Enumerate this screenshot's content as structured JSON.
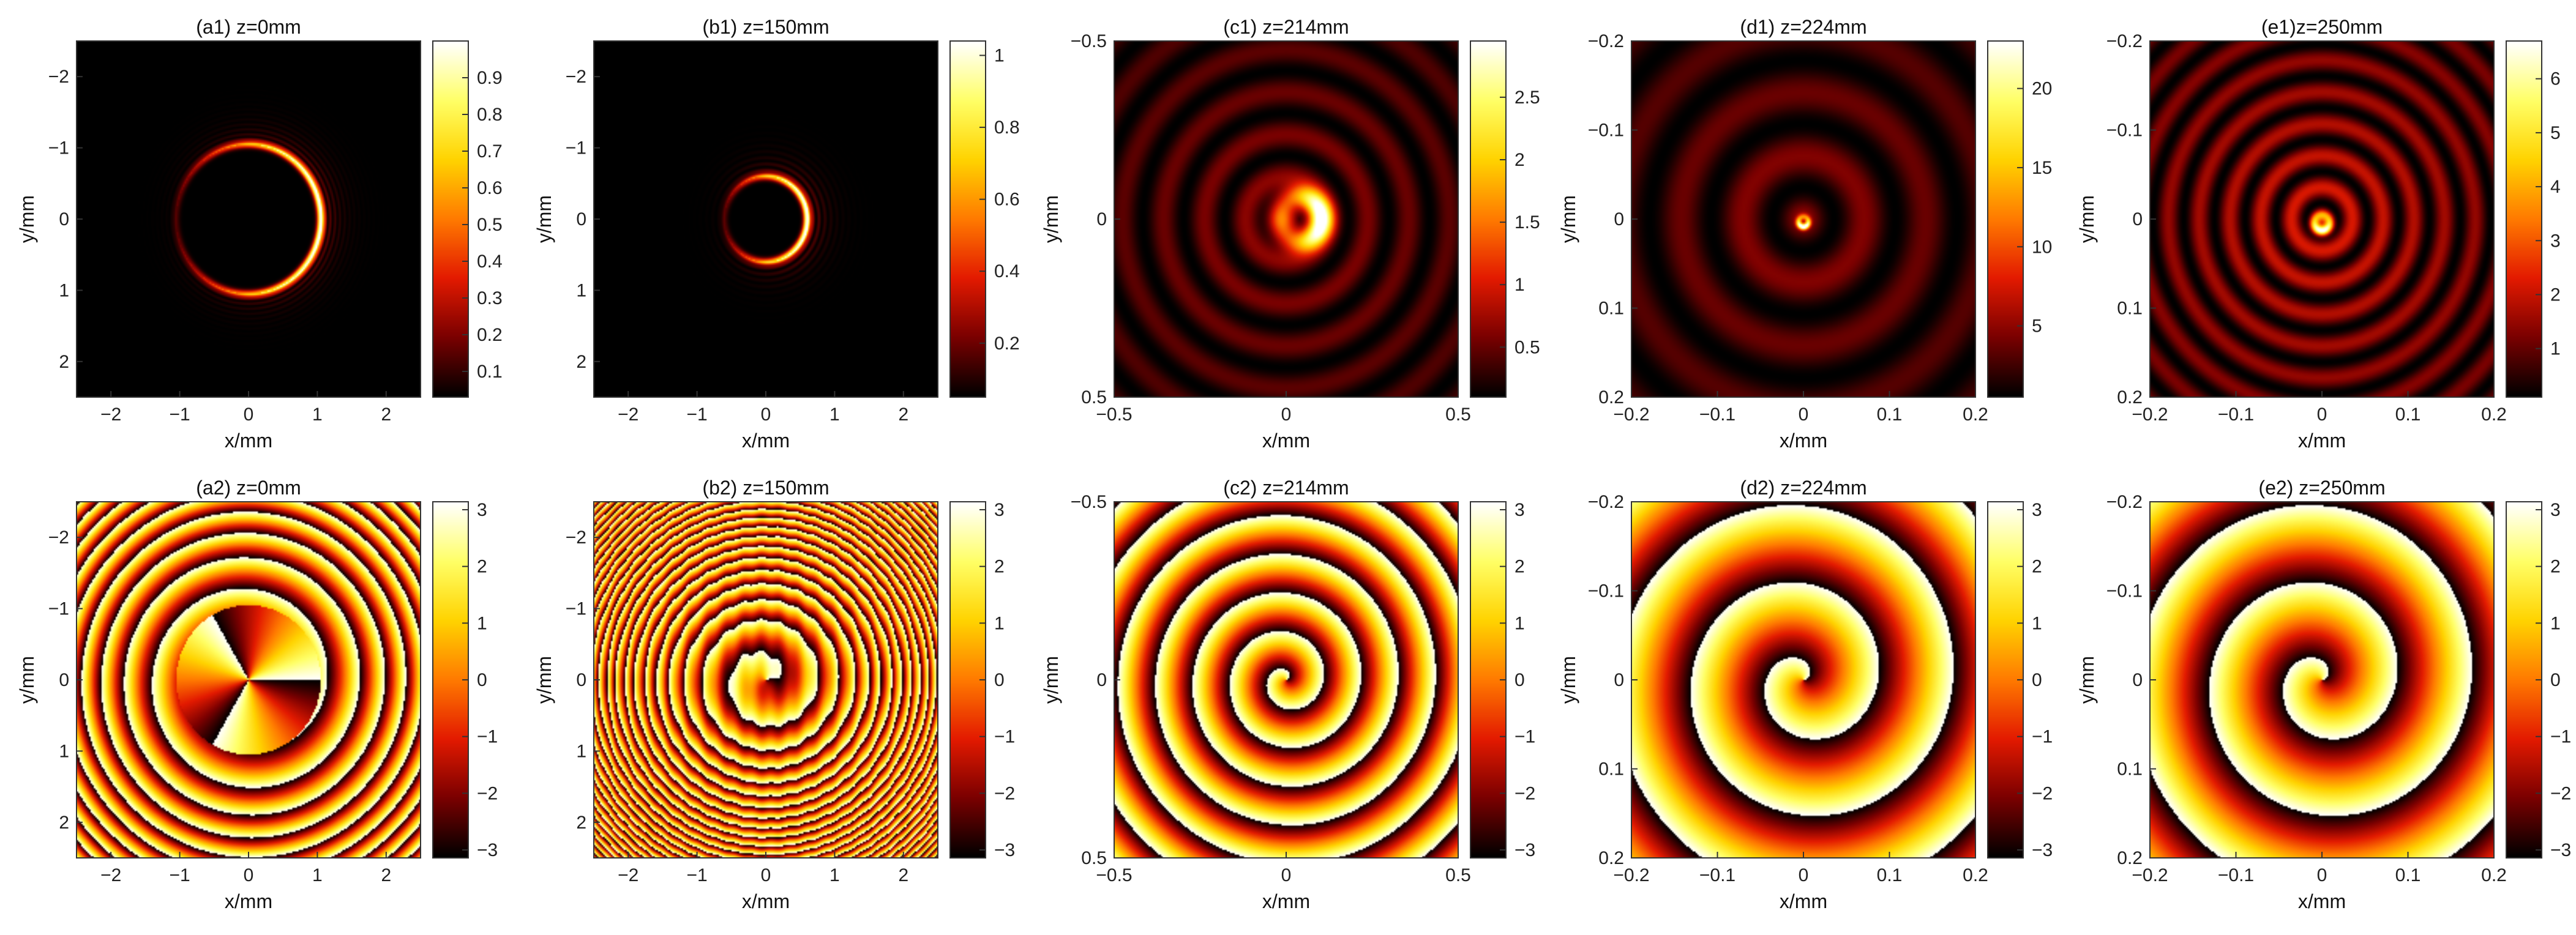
{
  "figure": {
    "colormap": "hot",
    "colormap_stops": [
      "#000000",
      "#7a0000",
      "#e31a00",
      "#ff7a00",
      "#ffd300",
      "#ffff66",
      "#ffffff"
    ]
  },
  "chart_data": [
    {
      "id": "a1",
      "type": "heatmap",
      "quantity": "intensity",
      "title": "(a1) z=0mm",
      "xlabel": "x/mm",
      "ylabel": "y/mm",
      "xlim": [
        -2.5,
        2.5
      ],
      "ylim": [
        -2.5,
        2.5
      ],
      "y_reversed": true,
      "xticks": [
        {
          "v": -2,
          "t": "−2"
        },
        {
          "v": -1,
          "t": "−1"
        },
        {
          "v": 0,
          "t": "0"
        },
        {
          "v": 1,
          "t": "1"
        },
        {
          "v": 2,
          "t": "2"
        }
      ],
      "yticks": [
        {
          "v": -2,
          "t": "−2"
        },
        {
          "v": -1,
          "t": "−1"
        },
        {
          "v": 0,
          "t": "0"
        },
        {
          "v": 1,
          "t": "1"
        },
        {
          "v": 2,
          "t": "2"
        }
      ],
      "colorbar": {
        "min": 0.03,
        "max": 1.0,
        "ticks": [
          {
            "v": 0.1,
            "t": "0.1"
          },
          {
            "v": 0.2,
            "t": "0.2"
          },
          {
            "v": 0.3,
            "t": "0.3"
          },
          {
            "v": 0.4,
            "t": "0.4"
          },
          {
            "v": 0.5,
            "t": "0.5"
          },
          {
            "v": 0.6,
            "t": "0.6"
          },
          {
            "v": 0.7,
            "t": "0.7"
          },
          {
            "v": 0.8,
            "t": "0.8"
          },
          {
            "v": 0.9,
            "t": "0.9"
          }
        ]
      },
      "pattern": {
        "kind": "ring",
        "cx": 0.0,
        "cy": 0.0,
        "radius": 1.05,
        "width": 0.05,
        "bright_side": "right",
        "fringes": 5
      }
    },
    {
      "id": "b1",
      "type": "heatmap",
      "quantity": "intensity",
      "title": "(b1) z=150mm",
      "xlabel": "x/mm",
      "ylabel": "y/mm",
      "xlim": [
        -2.5,
        2.5
      ],
      "ylim": [
        -2.5,
        2.5
      ],
      "y_reversed": true,
      "xticks": [
        {
          "v": -2,
          "t": "−2"
        },
        {
          "v": -1,
          "t": "−1"
        },
        {
          "v": 0,
          "t": "0"
        },
        {
          "v": 1,
          "t": "1"
        },
        {
          "v": 2,
          "t": "2"
        }
      ],
      "yticks": [
        {
          "v": -2,
          "t": "−2"
        },
        {
          "v": -1,
          "t": "−1"
        },
        {
          "v": 0,
          "t": "0"
        },
        {
          "v": 1,
          "t": "1"
        },
        {
          "v": 2,
          "t": "2"
        }
      ],
      "colorbar": {
        "min": 0.05,
        "max": 1.04,
        "ticks": [
          {
            "v": 0.2,
            "t": "0.2"
          },
          {
            "v": 0.4,
            "t": "0.4"
          },
          {
            "v": 0.6,
            "t": "0.6"
          },
          {
            "v": 0.8,
            "t": "0.8"
          },
          {
            "v": 1.0,
            "t": "1"
          }
        ]
      },
      "pattern": {
        "kind": "ring",
        "cx": 0.0,
        "cy": 0.0,
        "radius": 0.6,
        "width": 0.05,
        "bright_side": "right",
        "fringes": 4
      }
    },
    {
      "id": "c1",
      "type": "heatmap",
      "quantity": "intensity",
      "title": "(c1) z=214mm",
      "xlabel": "x/mm",
      "ylabel": "y/mm",
      "xlim": [
        -0.5,
        0.5
      ],
      "ylim": [
        -0.5,
        0.5
      ],
      "y_reversed": true,
      "xticks": [
        {
          "v": -0.5,
          "t": "−0.5"
        },
        {
          "v": 0,
          "t": "0"
        },
        {
          "v": 0.5,
          "t": "0.5"
        }
      ],
      "yticks": [
        {
          "v": -0.5,
          "t": "−0.5"
        },
        {
          "v": 0,
          "t": "0"
        },
        {
          "v": 0.5,
          "t": "0.5"
        }
      ],
      "colorbar": {
        "min": 0.1,
        "max": 2.95,
        "ticks": [
          {
            "v": 0.5,
            "t": "0.5"
          },
          {
            "v": 1.0,
            "t": "1"
          },
          {
            "v": 1.5,
            "t": "1.5"
          },
          {
            "v": 2.0,
            "t": "2"
          },
          {
            "v": 2.5,
            "t": "2.5"
          }
        ]
      },
      "pattern": {
        "kind": "crescent",
        "cx": 0.08,
        "cy": 0.0,
        "radius": 0.12,
        "bright_side": "right",
        "halo_rings": 3
      }
    },
    {
      "id": "d1",
      "type": "heatmap",
      "quantity": "intensity",
      "title": "(d1) z=224mm",
      "xlabel": "x/mm",
      "ylabel": "y/mm",
      "xlim": [
        -0.2,
        0.2
      ],
      "ylim": [
        -0.2,
        0.2
      ],
      "y_reversed": true,
      "xticks": [
        {
          "v": -0.2,
          "t": "−0.2"
        },
        {
          "v": -0.1,
          "t": "−0.1"
        },
        {
          "v": 0,
          "t": "0"
        },
        {
          "v": 0.1,
          "t": "0.1"
        },
        {
          "v": 0.2,
          "t": "0.2"
        }
      ],
      "yticks": [
        {
          "v": -0.2,
          "t": "−0.2"
        },
        {
          "v": -0.1,
          "t": "−0.1"
        },
        {
          "v": 0,
          "t": "0"
        },
        {
          "v": 0.1,
          "t": "0.1"
        },
        {
          "v": 0.2,
          "t": "0.2"
        }
      ],
      "colorbar": {
        "min": 0.5,
        "max": 23.0,
        "ticks": [
          {
            "v": 5,
            "t": "5"
          },
          {
            "v": 10,
            "t": "10"
          },
          {
            "v": 15,
            "t": "15"
          },
          {
            "v": 20,
            "t": "20"
          }
        ]
      },
      "pattern": {
        "kind": "crescent",
        "cx": 0.0,
        "cy": 0.015,
        "radius": 0.028,
        "bright_side": "bottom",
        "halo_rings": 2
      }
    },
    {
      "id": "e1",
      "type": "heatmap",
      "quantity": "intensity",
      "title": "(e1)z=250mm",
      "xlabel": "x/mm",
      "ylabel": "y/mm",
      "xlim": [
        -0.2,
        0.2
      ],
      "ylim": [
        -0.2,
        0.2
      ],
      "y_reversed": true,
      "xticks": [
        {
          "v": -0.2,
          "t": "−0.2"
        },
        {
          "v": -0.1,
          "t": "−0.1"
        },
        {
          "v": 0,
          "t": "0"
        },
        {
          "v": 0.1,
          "t": "0.1"
        },
        {
          "v": 0.2,
          "t": "0.2"
        }
      ],
      "yticks": [
        {
          "v": -0.2,
          "t": "−0.2"
        },
        {
          "v": -0.1,
          "t": "−0.1"
        },
        {
          "v": 0,
          "t": "0"
        },
        {
          "v": 0.1,
          "t": "0.1"
        },
        {
          "v": 0.2,
          "t": "0.2"
        }
      ],
      "colorbar": {
        "min": 0.1,
        "max": 6.7,
        "ticks": [
          {
            "v": 1,
            "t": "1"
          },
          {
            "v": 2,
            "t": "2"
          },
          {
            "v": 3,
            "t": "3"
          },
          {
            "v": 4,
            "t": "4"
          },
          {
            "v": 5,
            "t": "5"
          },
          {
            "v": 6,
            "t": "6"
          }
        ]
      },
      "pattern": {
        "kind": "crescent",
        "cx": 0.0,
        "cy": 0.02,
        "radius": 0.045,
        "bright_side": "bottom",
        "halo_rings": 4
      }
    },
    {
      "id": "a2",
      "type": "heatmap",
      "quantity": "phase",
      "title": "(a2) z=0mm",
      "xlabel": "x/mm",
      "ylabel": "y/mm",
      "xlim": [
        -2.5,
        2.5
      ],
      "ylim": [
        -2.5,
        2.5
      ],
      "y_reversed": true,
      "xticks": [
        {
          "v": -2,
          "t": "−2"
        },
        {
          "v": -1,
          "t": "−1"
        },
        {
          "v": 0,
          "t": "0"
        },
        {
          "v": 1,
          "t": "1"
        },
        {
          "v": 2,
          "t": "2"
        }
      ],
      "yticks": [
        {
          "v": -2,
          "t": "−2"
        },
        {
          "v": -1,
          "t": "−1"
        },
        {
          "v": 0,
          "t": "0"
        },
        {
          "v": 1,
          "t": "1"
        },
        {
          "v": 2,
          "t": "2"
        }
      ],
      "colorbar": {
        "min": -3.14,
        "max": 3.14,
        "ticks": [
          {
            "v": -3,
            "t": "−3"
          },
          {
            "v": -2,
            "t": "−2"
          },
          {
            "v": -1,
            "t": "−1"
          },
          {
            "v": 0,
            "t": "0"
          },
          {
            "v": 1,
            "t": "1"
          },
          {
            "v": 2,
            "t": "2"
          },
          {
            "v": 3,
            "t": "3"
          }
        ]
      },
      "pattern": {
        "kind": "vortex-disk",
        "charge": 1,
        "disk_radius": 1.05,
        "ring_density": 10,
        "sectors": 3
      }
    },
    {
      "id": "b2",
      "type": "heatmap",
      "quantity": "phase",
      "title": "(b2) z=150mm",
      "xlabel": "x/mm",
      "ylabel": "y/mm",
      "xlim": [
        -2.5,
        2.5
      ],
      "ylim": [
        -2.5,
        2.5
      ],
      "y_reversed": true,
      "xticks": [
        {
          "v": -2,
          "t": "−2"
        },
        {
          "v": -1,
          "t": "−1"
        },
        {
          "v": 0,
          "t": "0"
        },
        {
          "v": 1,
          "t": "1"
        },
        {
          "v": 2,
          "t": "2"
        }
      ],
      "yticks": [
        {
          "v": -2,
          "t": "−2"
        },
        {
          "v": -1,
          "t": "−1"
        },
        {
          "v": 0,
          "t": "0"
        },
        {
          "v": 1,
          "t": "1"
        },
        {
          "v": 2,
          "t": "2"
        }
      ],
      "colorbar": {
        "min": -3.14,
        "max": 3.14,
        "ticks": [
          {
            "v": -3,
            "t": "−3"
          },
          {
            "v": -2,
            "t": "−2"
          },
          {
            "v": -1,
            "t": "−1"
          },
          {
            "v": 0,
            "t": "0"
          },
          {
            "v": 1,
            "t": "1"
          },
          {
            "v": 2,
            "t": "2"
          },
          {
            "v": 3,
            "t": "3"
          }
        ]
      },
      "pattern": {
        "kind": "rings-spiral",
        "ring_spacing": 0.22,
        "spiral_turns": 1
      }
    },
    {
      "id": "c2",
      "type": "heatmap",
      "quantity": "phase",
      "title": "(c2) z=214mm",
      "xlabel": "x/mm",
      "ylabel": "y/mm",
      "xlim": [
        -0.5,
        0.5
      ],
      "ylim": [
        -0.5,
        0.5
      ],
      "y_reversed": true,
      "xticks": [
        {
          "v": -0.5,
          "t": "−0.5"
        },
        {
          "v": 0,
          "t": "0"
        },
        {
          "v": 0.5,
          "t": "0.5"
        }
      ],
      "yticks": [
        {
          "v": -0.5,
          "t": "−0.5"
        },
        {
          "v": 0,
          "t": "0"
        },
        {
          "v": 0.5,
          "t": "0.5"
        }
      ],
      "colorbar": {
        "min": -3.14,
        "max": 3.14,
        "ticks": [
          {
            "v": -3,
            "t": "−3"
          },
          {
            "v": -2,
            "t": "−2"
          },
          {
            "v": -1,
            "t": "−1"
          },
          {
            "v": 0,
            "t": "0"
          },
          {
            "v": 1,
            "t": "1"
          },
          {
            "v": 2,
            "t": "2"
          },
          {
            "v": 3,
            "t": "3"
          }
        ]
      },
      "pattern": {
        "kind": "spiral",
        "turns": 4,
        "clip_radius": 0.48
      }
    },
    {
      "id": "d2",
      "type": "heatmap",
      "quantity": "phase",
      "title": "(d2) z=224mm",
      "xlabel": "x/mm",
      "ylabel": "y/mm",
      "xlim": [
        -0.2,
        0.2
      ],
      "ylim": [
        -0.2,
        0.2
      ],
      "y_reversed": true,
      "xticks": [
        {
          "v": -0.2,
          "t": "−0.2"
        },
        {
          "v": -0.1,
          "t": "−0.1"
        },
        {
          "v": 0,
          "t": "0"
        },
        {
          "v": 0.1,
          "t": "0.1"
        },
        {
          "v": 0.2,
          "t": "0.2"
        }
      ],
      "yticks": [
        {
          "v": -0.2,
          "t": "−0.2"
        },
        {
          "v": -0.1,
          "t": "−0.1"
        },
        {
          "v": 0,
          "t": "0"
        },
        {
          "v": 0.1,
          "t": "0.1"
        },
        {
          "v": 0.2,
          "t": "0.2"
        }
      ],
      "colorbar": {
        "min": -3.14,
        "max": 3.14,
        "ticks": [
          {
            "v": -3,
            "t": "−3"
          },
          {
            "v": -2,
            "t": "−2"
          },
          {
            "v": -1,
            "t": "−1"
          },
          {
            "v": 0,
            "t": "0"
          },
          {
            "v": 1,
            "t": "1"
          },
          {
            "v": 2,
            "t": "2"
          },
          {
            "v": 3,
            "t": "3"
          }
        ]
      },
      "pattern": {
        "kind": "spiral",
        "turns": 2,
        "clip_radius": 0.2
      }
    },
    {
      "id": "e2",
      "type": "heatmap",
      "quantity": "phase",
      "title": "(e2) z=250mm",
      "xlabel": "x/mm",
      "ylabel": "y/mm",
      "xlim": [
        -0.2,
        0.2
      ],
      "ylim": [
        -0.2,
        0.2
      ],
      "y_reversed": true,
      "xticks": [
        {
          "v": -0.2,
          "t": "−0.2"
        },
        {
          "v": -0.1,
          "t": "−0.1"
        },
        {
          "v": 0,
          "t": "0"
        },
        {
          "v": 0.1,
          "t": "0.1"
        },
        {
          "v": 0.2,
          "t": "0.2"
        }
      ],
      "yticks": [
        {
          "v": -0.2,
          "t": "−0.2"
        },
        {
          "v": -0.1,
          "t": "−0.1"
        },
        {
          "v": 0,
          "t": "0"
        },
        {
          "v": 0.1,
          "t": "0.1"
        },
        {
          "v": 0.2,
          "t": "0.2"
        }
      ],
      "colorbar": {
        "min": -3.14,
        "max": 3.14,
        "ticks": [
          {
            "v": -3,
            "t": "−3"
          },
          {
            "v": -2,
            "t": "−2"
          },
          {
            "v": -1,
            "t": "−1"
          },
          {
            "v": 0,
            "t": "0"
          },
          {
            "v": 1,
            "t": "1"
          },
          {
            "v": 2,
            "t": "2"
          },
          {
            "v": 3,
            "t": "3"
          }
        ]
      },
      "pattern": {
        "kind": "spiral",
        "turns": 2,
        "clip_radius": 0.21
      }
    }
  ]
}
